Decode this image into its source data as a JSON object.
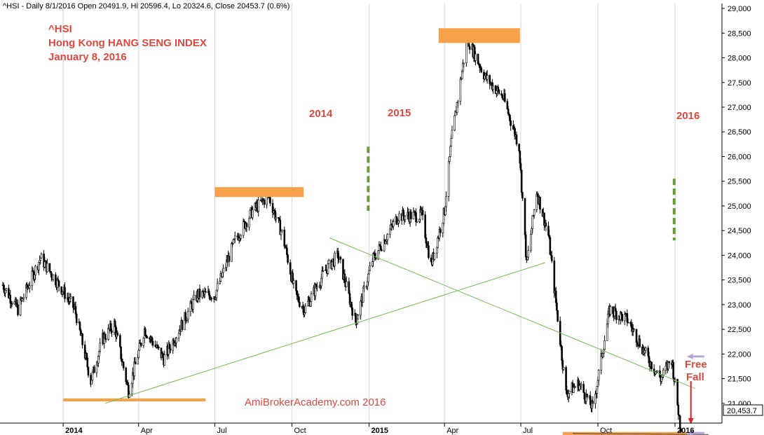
{
  "header": "^HSI - Daily 8/1/2016 Open 20491.9, Hi 20596.4, Lo 20324.6, Close 20453.7 (0.6%)",
  "title_lines": [
    "^HSI",
    "Hong Kong HANG SENG INDEX",
    "January 8, 2016"
  ],
  "watermark": "AmiBrokerAcademy.com   2016",
  "year_labels": [
    "2014",
    "2015",
    "2016"
  ],
  "free_fall_lines": [
    "Free",
    "Fall"
  ],
  "last_price_label": "20,453.7",
  "colors": {
    "annotation": "#e0473e",
    "highlight": "#f7a24b",
    "trendline": "#6abf4b",
    "divider": "#6a9a3a",
    "arrow": "#e0202a",
    "pointer": "#b4a6d6"
  },
  "chart_data": {
    "type": "candlestick",
    "title": "^HSI",
    "ylim": [
      20600,
      29100
    ],
    "y_ticks": [
      21000,
      21500,
      22000,
      22500,
      23000,
      23500,
      24000,
      24500,
      25000,
      25500,
      26000,
      26500,
      27000,
      27500,
      28000,
      28500,
      29000
    ],
    "y_tick_labels": [
      "21,000",
      "21,500",
      "22,000",
      "22,500",
      "23,000",
      "23,500",
      "24,000",
      "24,500",
      "25,000",
      "25,500",
      "26,000",
      "26,500",
      "27,000",
      "27,500",
      "28,000",
      "28,500",
      "29,000"
    ],
    "x_ticks": [
      {
        "date": "2014-01-01",
        "label": "2014",
        "bold": true
      },
      {
        "date": "2014-04-01",
        "label": "Apr",
        "bold": false
      },
      {
        "date": "2014-07-01",
        "label": "Jul",
        "bold": false
      },
      {
        "date": "2014-10-01",
        "label": "Oct",
        "bold": false
      },
      {
        "date": "2015-01-01",
        "label": "2015",
        "bold": true
      },
      {
        "date": "2015-04-01",
        "label": "Apr",
        "bold": false
      },
      {
        "date": "2015-07-01",
        "label": "Jul",
        "bold": false
      },
      {
        "date": "2015-10-01",
        "label": "Oct",
        "bold": false
      },
      {
        "date": "2016-01-01",
        "label": "2016",
        "bold": true
      }
    ],
    "x_range": [
      "2013-10-21",
      "2016-02-26"
    ],
    "price_path": [
      [
        "2013-10-21",
        23400
      ],
      [
        "2013-11-08",
        22900
      ],
      [
        "2013-12-05",
        23950
      ],
      [
        "2013-12-31",
        23300
      ],
      [
        "2014-01-15",
        22900
      ],
      [
        "2014-02-03",
        21450
      ],
      [
        "2014-02-17",
        22300
      ],
      [
        "2014-03-03",
        22600
      ],
      [
        "2014-03-20",
        21250
      ],
      [
        "2014-04-08",
        22500
      ],
      [
        "2014-05-01",
        21900
      ],
      [
        "2014-06-10",
        23200
      ],
      [
        "2014-07-01",
        23200
      ],
      [
        "2014-07-25",
        24300
      ],
      [
        "2014-08-15",
        24900
      ],
      [
        "2014-09-03",
        25200
      ],
      [
        "2014-09-20",
        24400
      ],
      [
        "2014-10-05",
        23200
      ],
      [
        "2014-10-16",
        22900
      ],
      [
        "2014-11-10",
        23700
      ],
      [
        "2014-11-25",
        24000
      ],
      [
        "2014-12-16",
        22650
      ],
      [
        "2015-01-05",
        23900
      ],
      [
        "2015-02-05",
        24800
      ],
      [
        "2015-03-05",
        24800
      ],
      [
        "2015-03-16",
        23800
      ],
      [
        "2015-04-01",
        24900
      ],
      [
        "2015-04-09",
        26300
      ],
      [
        "2015-04-28",
        28400
      ],
      [
        "2015-05-20",
        27600
      ],
      [
        "2015-06-10",
        27200
      ],
      [
        "2015-06-29",
        26200
      ],
      [
        "2015-07-08",
        23800
      ],
      [
        "2015-07-20",
        25300
      ],
      [
        "2015-08-03",
        24400
      ],
      [
        "2015-08-24",
        21200
      ],
      [
        "2015-09-08",
        21400
      ],
      [
        "2015-09-25",
        20900
      ],
      [
        "2015-10-15",
        22900
      ],
      [
        "2015-11-05",
        22700
      ],
      [
        "2015-11-30",
        21900
      ],
      [
        "2015-12-15",
        21500
      ],
      [
        "2015-12-28",
        21900
      ],
      [
        "2016-01-08",
        20450
      ]
    ],
    "last": {
      "date": "2016-01-08",
      "open": 20491.9,
      "high": 20596.4,
      "low": 20324.6,
      "close": 20453.7,
      "change_pct": 0.6
    }
  }
}
